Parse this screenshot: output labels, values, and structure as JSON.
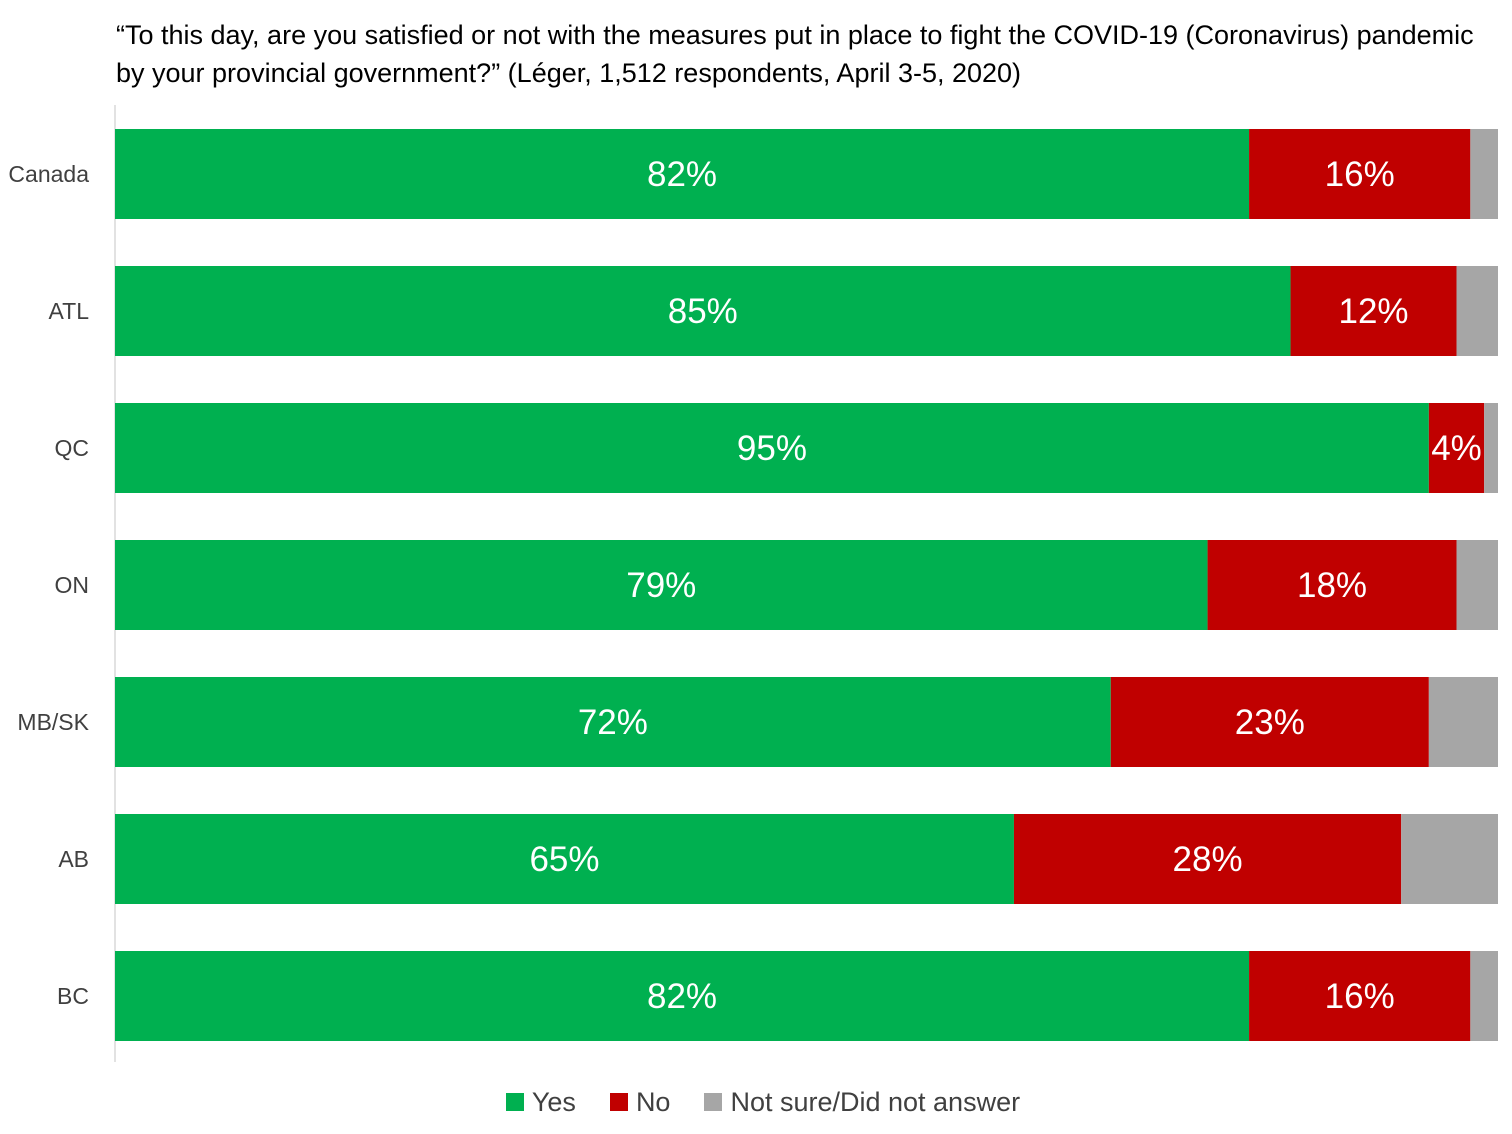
{
  "chart_data": {
    "type": "bar",
    "orientation": "horizontal-stacked",
    "title": "“To this day, are you satisfied or not with the measures put in place to fight the COVID-19 (Coronavirus) pandemic by your provincial government?” (Léger, 1,512 respondents, April 3-5, 2020)",
    "categories": [
      "Canada",
      "ATL",
      "QC",
      "ON",
      "MB/SK",
      "AB",
      "BC"
    ],
    "series": [
      {
        "name": "Yes",
        "color": "#00B050",
        "values": [
          82,
          85,
          95,
          79,
          72,
          65,
          82
        ],
        "labels": [
          "82%",
          "85%",
          "95%",
          "79%",
          "72%",
          "65%",
          "82%"
        ]
      },
      {
        "name": "No",
        "color": "#C00000",
        "values": [
          16,
          12,
          4,
          18,
          23,
          28,
          16
        ],
        "labels": [
          "16%",
          "12%",
          "4%",
          "18%",
          "23%",
          "28%",
          "16%"
        ]
      },
      {
        "name": "Not sure/Did not answer",
        "color": "#A6A6A6",
        "values": [
          2,
          3,
          1,
          3,
          5,
          7,
          2
        ],
        "labels": [
          "",
          "",
          "",
          "",
          "",
          "",
          ""
        ]
      }
    ],
    "xlim": [
      0,
      100
    ],
    "grid": false,
    "legend_position": "bottom"
  }
}
